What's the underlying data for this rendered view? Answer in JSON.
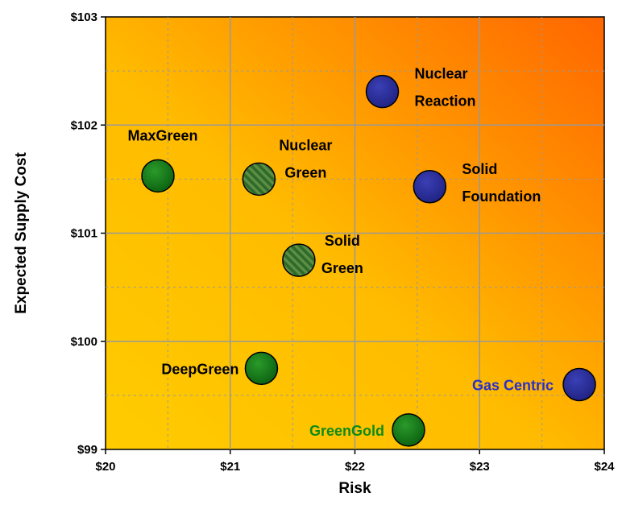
{
  "chart_data": {
    "type": "scatter",
    "xlabel": "Risk",
    "ylabel": "Expected Supply Cost",
    "xlim": [
      20,
      24
    ],
    "ylim": [
      99,
      103
    ],
    "xticks": [
      "$20",
      "$21",
      "$22",
      "$23",
      "$24"
    ],
    "yticks": [
      "$99",
      "$100",
      "$101",
      "$102",
      "$103"
    ],
    "grid": true,
    "legend": "none",
    "colors": {
      "green": "#0f7a16",
      "blue": "#2b2f9a",
      "gradient_start": "#ffcc00",
      "gradient_end": "#ff6600"
    },
    "points": [
      {
        "label": "Nuclear Reaction",
        "x": 22.22,
        "y": 102.31,
        "color": "blue",
        "pattern": "solid",
        "label_color": "#000000"
      },
      {
        "label": "MaxGreen",
        "x": 20.42,
        "y": 101.53,
        "color": "green",
        "pattern": "solid",
        "label_color": "#000000"
      },
      {
        "label": "Nuclear Green",
        "x": 21.23,
        "y": 101.5,
        "color": "green",
        "pattern": "striped",
        "label_color": "#000000"
      },
      {
        "label": "Solid Foundation",
        "x": 22.6,
        "y": 101.43,
        "color": "blue",
        "pattern": "solid",
        "label_color": "#000000"
      },
      {
        "label": "Solid Green",
        "x": 21.55,
        "y": 100.75,
        "color": "green",
        "pattern": "striped",
        "label_color": "#000000"
      },
      {
        "label": "DeepGreen",
        "x": 21.25,
        "y": 99.75,
        "color": "green",
        "pattern": "solid",
        "label_color": "#000000"
      },
      {
        "label": "Gas Centric",
        "x": 23.8,
        "y": 99.6,
        "color": "blue",
        "pattern": "solid",
        "label_color": "#2b2fc8"
      },
      {
        "label": "GreenGold",
        "x": 22.43,
        "y": 99.18,
        "color": "green",
        "pattern": "solid",
        "label_color": "#0f8a16"
      }
    ]
  }
}
